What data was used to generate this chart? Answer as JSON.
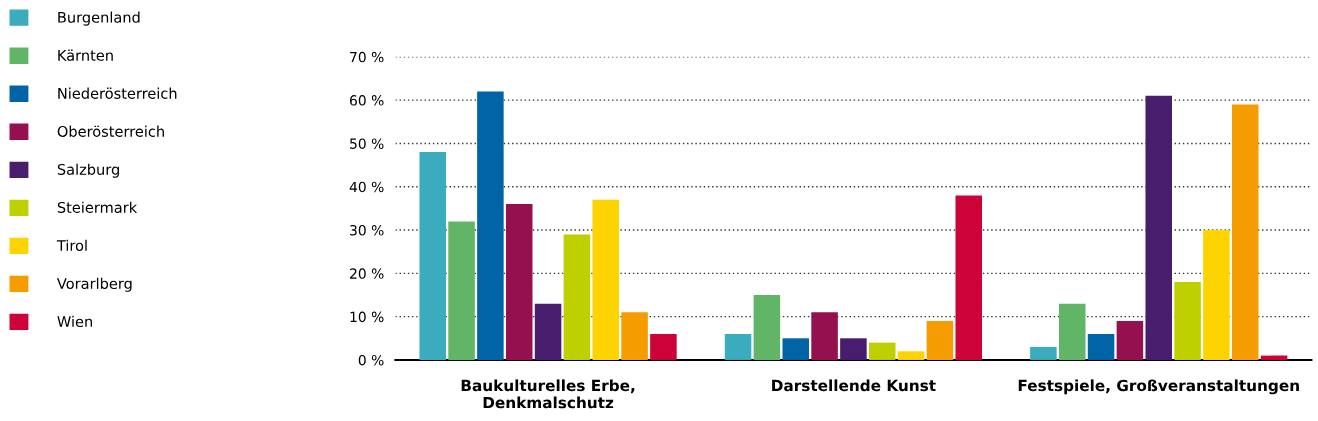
{
  "chart_data": {
    "type": "bar",
    "categories": [
      "Baukulturelles Erbe,\nDenkmalschutz",
      "Darstellende Kunst",
      "Festspiele, Großveranstaltungen"
    ],
    "series": [
      {
        "name": "Burgenland",
        "color": "#3aacbe",
        "values": [
          48,
          6,
          3
        ]
      },
      {
        "name": "Kärnten",
        "color": "#61b566",
        "values": [
          32,
          15,
          13
        ]
      },
      {
        "name": "Niederösterreich",
        "color": "#0064a6",
        "values": [
          62,
          5,
          6
        ]
      },
      {
        "name": "Oberösterreich",
        "color": "#95104f",
        "values": [
          36,
          11,
          9
        ]
      },
      {
        "name": "Salzburg",
        "color": "#491d6e",
        "values": [
          13,
          5,
          61
        ]
      },
      {
        "name": "Steiermark",
        "color": "#bed000",
        "values": [
          29,
          4,
          18
        ]
      },
      {
        "name": "Tirol",
        "color": "#fed400",
        "values": [
          37,
          2,
          30
        ]
      },
      {
        "name": "Vorarlberg",
        "color": "#f59d00",
        "values": [
          11,
          9,
          59
        ]
      },
      {
        "name": "Wien",
        "color": "#cc0238",
        "values": [
          6,
          38,
          1
        ]
      }
    ],
    "ylim": [
      0,
      70
    ],
    "yticks": [
      {
        "value": 0,
        "label": "0 %"
      },
      {
        "value": 10,
        "label": "10 %"
      },
      {
        "value": 20,
        "label": "20 %"
      },
      {
        "value": 30,
        "label": "30 %"
      },
      {
        "value": 40,
        "label": "40 %"
      },
      {
        "value": 50,
        "label": "50 %"
      },
      {
        "value": 60,
        "label": "60 %"
      },
      {
        "value": 70,
        "label": "70 %"
      }
    ],
    "grid": "y",
    "legend": "left"
  }
}
